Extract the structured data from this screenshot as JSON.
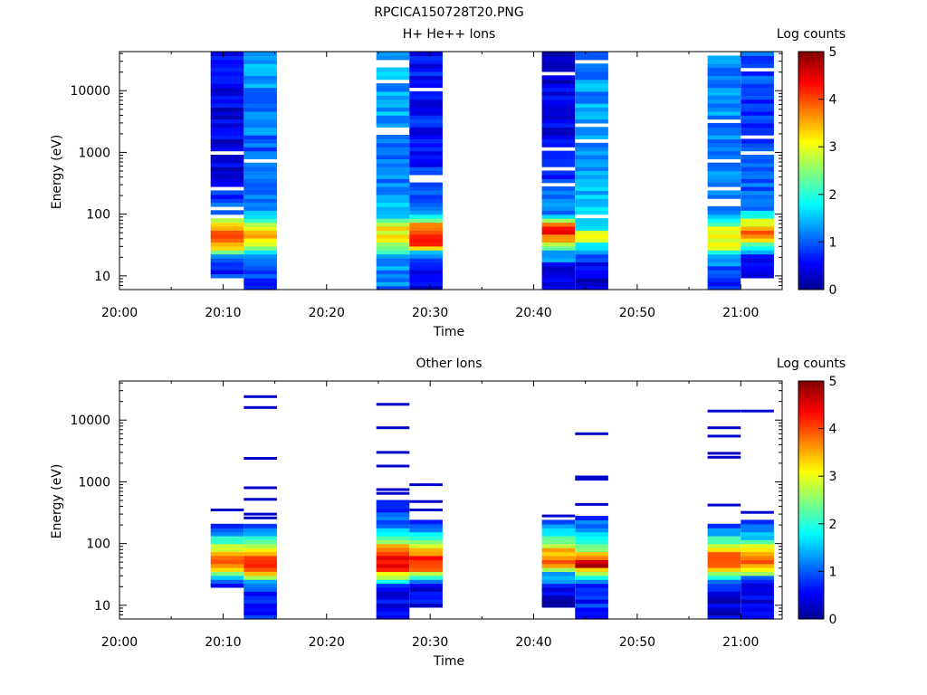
{
  "title": "RPCICA150728T20.PNG",
  "colorbar": {
    "label": "Log counts",
    "ticks": [
      "0",
      "1",
      "2",
      "3",
      "4",
      "5"
    ],
    "range": [
      0,
      5
    ]
  },
  "chart_data": [
    {
      "type": "heatmap",
      "title": "H+ He++ Ions",
      "xlabel": "Time",
      "ylabel": "Energy (eV)",
      "x_ticks": [
        "20:00",
        "20:10",
        "20:20",
        "20:30",
        "20:40",
        "20:50",
        "21:00"
      ],
      "y_ticks": [
        "10",
        "100",
        "1000",
        "10000"
      ],
      "y_scale": "log",
      "ylim": [
        6,
        43000
      ],
      "xlim_minutes": [
        0,
        64
      ],
      "colorbar_label": "Log counts",
      "columns": [
        {
          "t_start": 8.8,
          "t_end": 12,
          "profile": [
            [
              9,
              1
            ],
            [
              14,
              0.5
            ],
            [
              20,
              0.9
            ],
            [
              30,
              3.5
            ],
            [
              45,
              4.2
            ],
            [
              70,
              3.6
            ],
            [
              100,
              1.2
            ],
            [
              400,
              0.4
            ],
            [
              43000,
              0.5
            ]
          ],
          "floor": 9,
          "noise": 0.35,
          "seed": 1
        },
        {
          "t_start": 12,
          "t_end": 15.2,
          "profile": [
            [
              6,
              0.8
            ],
            [
              20,
              1.1
            ],
            [
              30,
              2.5
            ],
            [
              40,
              3.2
            ],
            [
              55,
              3.3
            ],
            [
              75,
              2.1
            ],
            [
              100,
              1.4
            ],
            [
              1000,
              1.1
            ],
            [
              43000,
              1.4
            ]
          ],
          "floor": 6,
          "noise": 0.35,
          "seed": 2
        },
        {
          "t_start": 24.8,
          "t_end": 28,
          "profile": [
            [
              6,
              1.1
            ],
            [
              20,
              1.2
            ],
            [
              28,
              2.2
            ],
            [
              40,
              3.2
            ],
            [
              60,
              3.1
            ],
            [
              85,
              1.8
            ],
            [
              200,
              1.2
            ],
            [
              2000,
              1.3
            ],
            [
              43000,
              1.5
            ]
          ],
          "floor": 6,
          "noise": 0.35,
          "seed": 3
        },
        {
          "t_start": 28,
          "t_end": 31.2,
          "profile": [
            [
              6,
              0.5
            ],
            [
              12,
              0.5
            ],
            [
              25,
              1.5
            ],
            [
              30,
              3.8
            ],
            [
              45,
              4.3
            ],
            [
              70,
              3.6
            ],
            [
              100,
              1.2
            ],
            [
              1000,
              0.7
            ],
            [
              43000,
              0.6
            ]
          ],
          "floor": 6,
          "noise": 0.35,
          "seed": 4
        },
        {
          "t_start": 40.8,
          "t_end": 44,
          "profile": [
            [
              6,
              0.3
            ],
            [
              12,
              0.4
            ],
            [
              25,
              1.6
            ],
            [
              35,
              3.0
            ],
            [
              50,
              4.4
            ],
            [
              70,
              3.8
            ],
            [
              100,
              1.2
            ],
            [
              1000,
              0.5
            ],
            [
              43000,
              0.4
            ]
          ],
          "floor": 6,
          "noise": 0.35,
          "seed": 5
        },
        {
          "t_start": 44,
          "t_end": 47.2,
          "profile": [
            [
              6,
              0.3
            ],
            [
              20,
              0.8
            ],
            [
              30,
              1.6
            ],
            [
              40,
              2.8
            ],
            [
              48,
              3.0
            ],
            [
              60,
              1.8
            ],
            [
              100,
              1.5
            ],
            [
              1000,
              1.4
            ],
            [
              43000,
              1.3
            ]
          ],
          "floor": 6,
          "noise": 0.35,
          "seed": 6
        },
        {
          "t_start": 56.8,
          "t_end": 60,
          "profile": [
            [
              6,
              0.8
            ],
            [
              20,
              1.2
            ],
            [
              30,
              3.0
            ],
            [
              45,
              3.2
            ],
            [
              60,
              3.0
            ],
            [
              80,
              1.8
            ],
            [
              100,
              1.4
            ],
            [
              1000,
              1.2
            ],
            [
              43000,
              1.3
            ]
          ],
          "floor": 6,
          "noise": 0.35,
          "seed": 7
        },
        {
          "t_start": 60,
          "t_end": 63.2,
          "profile": [
            [
              9,
              0.4
            ],
            [
              20,
              0.5
            ],
            [
              30,
              1.8
            ],
            [
              40,
              3.8
            ],
            [
              55,
              4.0
            ],
            [
              80,
              2.8
            ],
            [
              120,
              1.2
            ],
            [
              1000,
              0.8
            ],
            [
              43000,
              0.9
            ]
          ],
          "floor": 9,
          "noise": 0.35,
          "seed": 8
        }
      ]
    },
    {
      "type": "heatmap",
      "title": "Other Ions",
      "xlabel": "Time",
      "ylabel": "Energy (eV)",
      "x_ticks": [
        "20:00",
        "20:10",
        "20:20",
        "20:30",
        "20:40",
        "20:50",
        "21:00"
      ],
      "y_ticks": [
        "10",
        "100",
        "1000",
        "10000"
      ],
      "y_scale": "log",
      "ylim": [
        6,
        43000
      ],
      "xlim_minutes": [
        0,
        64
      ],
      "colorbar_label": "Log counts",
      "columns": [
        {
          "t_start": 8.8,
          "t_end": 12,
          "profile": [
            [
              20,
              0.4
            ],
            [
              30,
              1.5
            ],
            [
              40,
              3.6
            ],
            [
              55,
              4.1
            ],
            [
              80,
              3.0
            ],
            [
              120,
              2.0
            ],
            [
              220,
              0.4
            ]
          ],
          "floor": 20,
          "top": 220,
          "noise": 0.3,
          "seed": 11,
          "lines": [
            350
          ]
        },
        {
          "t_start": 12,
          "t_end": 15.2,
          "profile": [
            [
              6,
              0.8
            ],
            [
              15,
              0.6
            ],
            [
              25,
              1.6
            ],
            [
              35,
              3.8
            ],
            [
              55,
              4.0
            ],
            [
              80,
              3.2
            ],
            [
              130,
              1.6
            ],
            [
              200,
              0.6
            ]
          ],
          "floor": 6,
          "top": 200,
          "noise": 0.3,
          "seed": 12,
          "lines": [
            260,
            300,
            520,
            800,
            2400,
            16000,
            24000
          ]
        },
        {
          "t_start": 24.8,
          "t_end": 28,
          "profile": [
            [
              6,
              0.4
            ],
            [
              20,
              0.6
            ],
            [
              25,
              1.8
            ],
            [
              40,
              4.3
            ],
            [
              60,
              4.6
            ],
            [
              100,
              3.0
            ],
            [
              200,
              1.2
            ],
            [
              500,
              0.4
            ]
          ],
          "floor": 6,
          "top": 500,
          "noise": 0.3,
          "seed": 13,
          "lines": [
            650,
            750,
            1800,
            3000,
            7500,
            18000
          ]
        },
        {
          "t_start": 28,
          "t_end": 31.2,
          "profile": [
            [
              10,
              0.5
            ],
            [
              20,
              0.4
            ],
            [
              30,
              2.0
            ],
            [
              40,
              4.0
            ],
            [
              60,
              4.2
            ],
            [
              100,
              2.6
            ],
            [
              200,
              1.0
            ],
            [
              250,
              0.5
            ]
          ],
          "floor": 10,
          "top": 250,
          "noise": 0.3,
          "seed": 14,
          "lines": [
            350,
            480,
            900
          ]
        },
        {
          "t_start": 40.8,
          "t_end": 44,
          "profile": [
            [
              10,
              0.4
            ],
            [
              14,
              0.3
            ],
            [
              35,
              1.5
            ],
            [
              45,
              4.0
            ],
            [
              70,
              3.6
            ],
            [
              110,
              2.6
            ],
            [
              180,
              1.4
            ],
            [
              250,
              0.5
            ]
          ],
          "floor": 10,
          "top": 250,
          "noise": 0.3,
          "seed": 15,
          "lines": [
            280
          ]
        },
        {
          "t_start": 44,
          "t_end": 47.2,
          "profile": [
            [
              6,
              0.8
            ],
            [
              20,
              0.6
            ],
            [
              30,
              1.8
            ],
            [
              45,
              4.8
            ],
            [
              60,
              3.6
            ],
            [
              100,
              2.0
            ],
            [
              200,
              1.2
            ],
            [
              300,
              0.5
            ]
          ],
          "floor": 6,
          "top": 300,
          "noise": 0.3,
          "seed": 16,
          "lines": [
            430,
            1100,
            1200,
            6000
          ]
        },
        {
          "t_start": 56.8,
          "t_end": 60,
          "profile": [
            [
              6,
              0.4
            ],
            [
              15,
              0.3
            ],
            [
              28,
              1.6
            ],
            [
              40,
              3.8
            ],
            [
              60,
              4.2
            ],
            [
              90,
              3.0
            ],
            [
              150,
              1.4
            ],
            [
              220,
              0.5
            ]
          ],
          "floor": 6,
          "top": 220,
          "noise": 0.3,
          "seed": 17,
          "lines": [
            420,
            2500,
            2900,
            5500,
            7500,
            14000
          ]
        },
        {
          "t_start": 60,
          "t_end": 63.2,
          "profile": [
            [
              6,
              0.4
            ],
            [
              12,
              0.4
            ],
            [
              28,
              0.6
            ],
            [
              35,
              3.0
            ],
            [
              50,
              4.0
            ],
            [
              80,
              3.2
            ],
            [
              130,
              1.6
            ],
            [
              250,
              0.6
            ]
          ],
          "floor": 6,
          "top": 250,
          "noise": 0.3,
          "seed": 18,
          "lines": [
            320,
            14000
          ]
        }
      ]
    }
  ]
}
